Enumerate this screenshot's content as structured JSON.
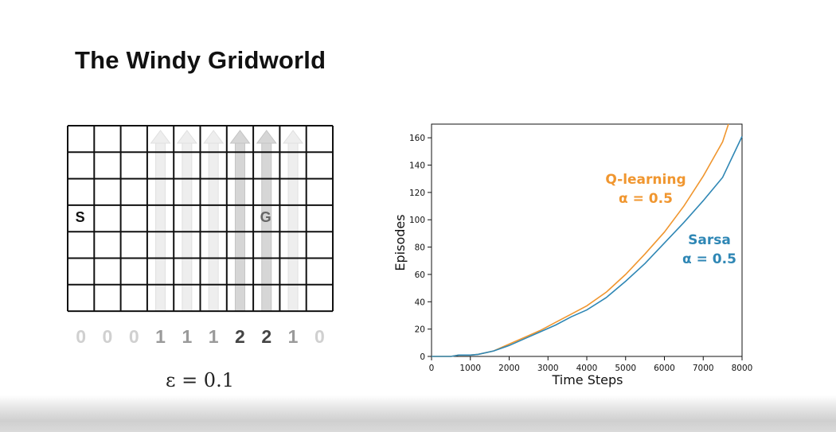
{
  "slide": {
    "title": "The Windy Gridworld",
    "epsilon_text": "ε = 0.1"
  },
  "gridworld": {
    "cols": 10,
    "rows": 7,
    "start_label": "S",
    "goal_label": "G",
    "wind_strengths": [
      "0",
      "0",
      "0",
      "1",
      "1",
      "1",
      "2",
      "2",
      "1",
      "0"
    ]
  },
  "chart_data": {
    "type": "line",
    "xlabel": "Time Steps",
    "ylabel": "Episodes",
    "xlim": [
      0,
      8000
    ],
    "ylim": [
      0,
      170
    ],
    "xticks": [
      "0",
      "1000",
      "2000",
      "3000",
      "4000",
      "5000",
      "6000",
      "7000",
      "8000"
    ],
    "yticks": [
      "0",
      "20",
      "40",
      "60",
      "80",
      "100",
      "120",
      "140",
      "160"
    ],
    "series": [
      {
        "name": "Q-learning",
        "annotation": [
          "Q-learning",
          "α = 0.5"
        ],
        "color": "#f0962f",
        "x": [
          0,
          500,
          700,
          1000,
          1200,
          1600,
          2000,
          2400,
          2800,
          3200,
          3600,
          4000,
          4500,
          5000,
          5500,
          6000,
          6500,
          7000,
          7500,
          7650
        ],
        "y": [
          0,
          0,
          1,
          1,
          1.5,
          4,
          9,
          14,
          19,
          25,
          31,
          37,
          47,
          60,
          75,
          91,
          110,
          132,
          157,
          170
        ]
      },
      {
        "name": "Sarsa",
        "annotation": [
          "Sarsa",
          "α = 0.5"
        ],
        "color": "#2f87b5",
        "x": [
          0,
          500,
          700,
          1000,
          1200,
          1600,
          2000,
          2400,
          2800,
          3200,
          3600,
          4000,
          4500,
          5000,
          5500,
          6000,
          6500,
          7000,
          7500,
          8000
        ],
        "y": [
          0,
          0,
          1,
          1,
          1.5,
          4,
          8,
          13,
          18,
          23,
          29,
          34,
          43,
          55,
          68,
          83,
          98,
          114,
          131,
          161
        ]
      }
    ]
  }
}
